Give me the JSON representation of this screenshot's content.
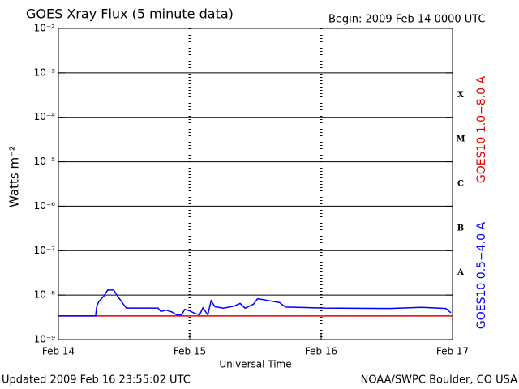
{
  "chart_data": {
    "type": "line",
    "title": "GOES Xray Flux (5 minute data)",
    "subtitle": "Begin:  2009 Feb 14 0000 UTC",
    "xlabel": "Universal Time",
    "ylabel": "Watts m⁻²",
    "footer_left": "Updated 2009 Feb 16 23:55:02 UTC",
    "footer_right": "NOAA/SWPC Boulder, CO USA",
    "log_y": true,
    "grid": true,
    "xlim": [
      0,
      72
    ],
    "xticks": [
      {
        "value": 0,
        "label": "Feb 14"
      },
      {
        "value": 24,
        "label": "Feb 15"
      },
      {
        "value": 48,
        "label": "Feb 16"
      },
      {
        "value": 72,
        "label": "Feb 17"
      }
    ],
    "ylim": [
      1e-09,
      0.01
    ],
    "yticks": [
      {
        "value": 1e-09,
        "label": "10⁻⁹"
      },
      {
        "value": 1e-08,
        "label": "10⁻⁸"
      },
      {
        "value": 1e-07,
        "label": "10⁻⁷"
      },
      {
        "value": 1e-06,
        "label": "10⁻⁶"
      },
      {
        "value": 1e-05,
        "label": "10⁻⁵"
      },
      {
        "value": 0.0001,
        "label": "10⁻⁴"
      },
      {
        "value": 0.001,
        "label": "10⁻³"
      },
      {
        "value": 0.01,
        "label": "10⁻²"
      }
    ],
    "flare_classes": [
      "A",
      "B",
      "C",
      "M",
      "X"
    ],
    "series": [
      {
        "name": "GOES10 1.0−8.0 A",
        "color": "#e00000",
        "x": [
          0,
          72
        ],
        "values": [
          3.4e-09,
          3.4e-09
        ]
      },
      {
        "name": "GOES10 0.5−4.0 A",
        "color": "#0000ff",
        "x": [
          0,
          6.8,
          7.0,
          7.4,
          8.3,
          9.0,
          10.1,
          10.8,
          11.6,
          12.4,
          18.2,
          18.7,
          19.7,
          20.7,
          21.6,
          22.5,
          23.1,
          24.0,
          24.9,
          25.8,
          26.4,
          27.3,
          27.9,
          28.6,
          30.1,
          32.0,
          33.2,
          34.1,
          35.6,
          36.4,
          38.2,
          40.4,
          41.5,
          48.6,
          60.4,
          66.4,
          70.8,
          71.7
        ],
        "values": [
          3.4e-09,
          3.4e-09,
          5.6e-09,
          7.2e-09,
          9.5e-09,
          1.3e-08,
          1.3e-08,
          9.5e-09,
          7e-09,
          5.1e-09,
          5.1e-09,
          4.3e-09,
          4.6e-09,
          4.2e-09,
          3.6e-09,
          3.6e-09,
          4.8e-09,
          4.4e-09,
          3.9e-09,
          3.6e-09,
          5.2e-09,
          3.6e-09,
          7.5e-09,
          5.5e-09,
          5.1e-09,
          5.6e-09,
          6.5e-09,
          5.1e-09,
          6.2e-09,
          8.3e-09,
          7.6e-09,
          6.8e-09,
          5.4e-09,
          5.1e-09,
          5e-09,
          5.3e-09,
          5e-09,
          4e-09
        ]
      }
    ]
  }
}
